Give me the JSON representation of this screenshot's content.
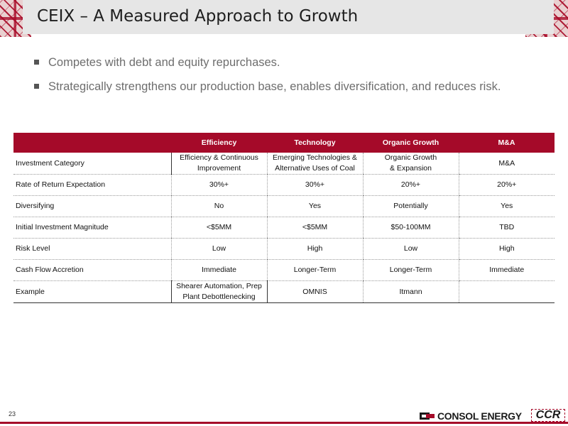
{
  "slide": {
    "title": "CEIX – A Measured Approach to Growth",
    "page_number": "23"
  },
  "bullets": [
    "Competes with debt and equity repurchases.",
    "Strategically strengthens our production base, enables diversification, and reduces risk."
  ],
  "table": {
    "headers": [
      "",
      "Efficiency",
      "Technology",
      "Organic Growth",
      "M&A"
    ],
    "rows": [
      {
        "label": "Investment Category",
        "cells": [
          [
            "Efficiency & Continuous",
            "Improvement"
          ],
          [
            "Emerging Technologies &",
            "Alternative Uses of Coal"
          ],
          [
            "Organic Growth",
            "& Expansion"
          ],
          [
            "M&A"
          ]
        ]
      },
      {
        "label": "Rate of Return Expectation",
        "cells": [
          [
            "30%+"
          ],
          [
            "30%+"
          ],
          [
            "20%+"
          ],
          [
            "20%+"
          ]
        ]
      },
      {
        "label": "Diversifying",
        "cells": [
          [
            "No"
          ],
          [
            "Yes"
          ],
          [
            "Potentially"
          ],
          [
            "Yes"
          ]
        ]
      },
      {
        "label": "Initial Investment Magnitude",
        "cells": [
          [
            "<$5MM"
          ],
          [
            "<$5MM"
          ],
          [
            "$50-100MM"
          ],
          [
            "TBD"
          ]
        ]
      },
      {
        "label": "Risk Level",
        "cells": [
          [
            "Low"
          ],
          [
            "High"
          ],
          [
            "Low"
          ],
          [
            "High"
          ]
        ]
      },
      {
        "label": "Cash Flow Accretion",
        "cells": [
          [
            "Immediate"
          ],
          [
            "Longer-Term"
          ],
          [
            "Longer-Term"
          ],
          [
            "Immediate"
          ]
        ]
      },
      {
        "label": "Example",
        "cells": [
          [
            "Shearer Automation, Prep",
            "Plant Debottlenecking"
          ],
          [
            "OMNIS"
          ],
          [
            "Itmann"
          ],
          [
            ""
          ]
        ]
      }
    ]
  },
  "logo": {
    "company": "CONSOL ENERGY",
    "mark_text": "CCR",
    "icon": "consol-logo-icon"
  },
  "colors": {
    "accent": "#a50a29",
    "title_bar": "#e6e6e6",
    "bullet_text": "#6e6e6e"
  }
}
